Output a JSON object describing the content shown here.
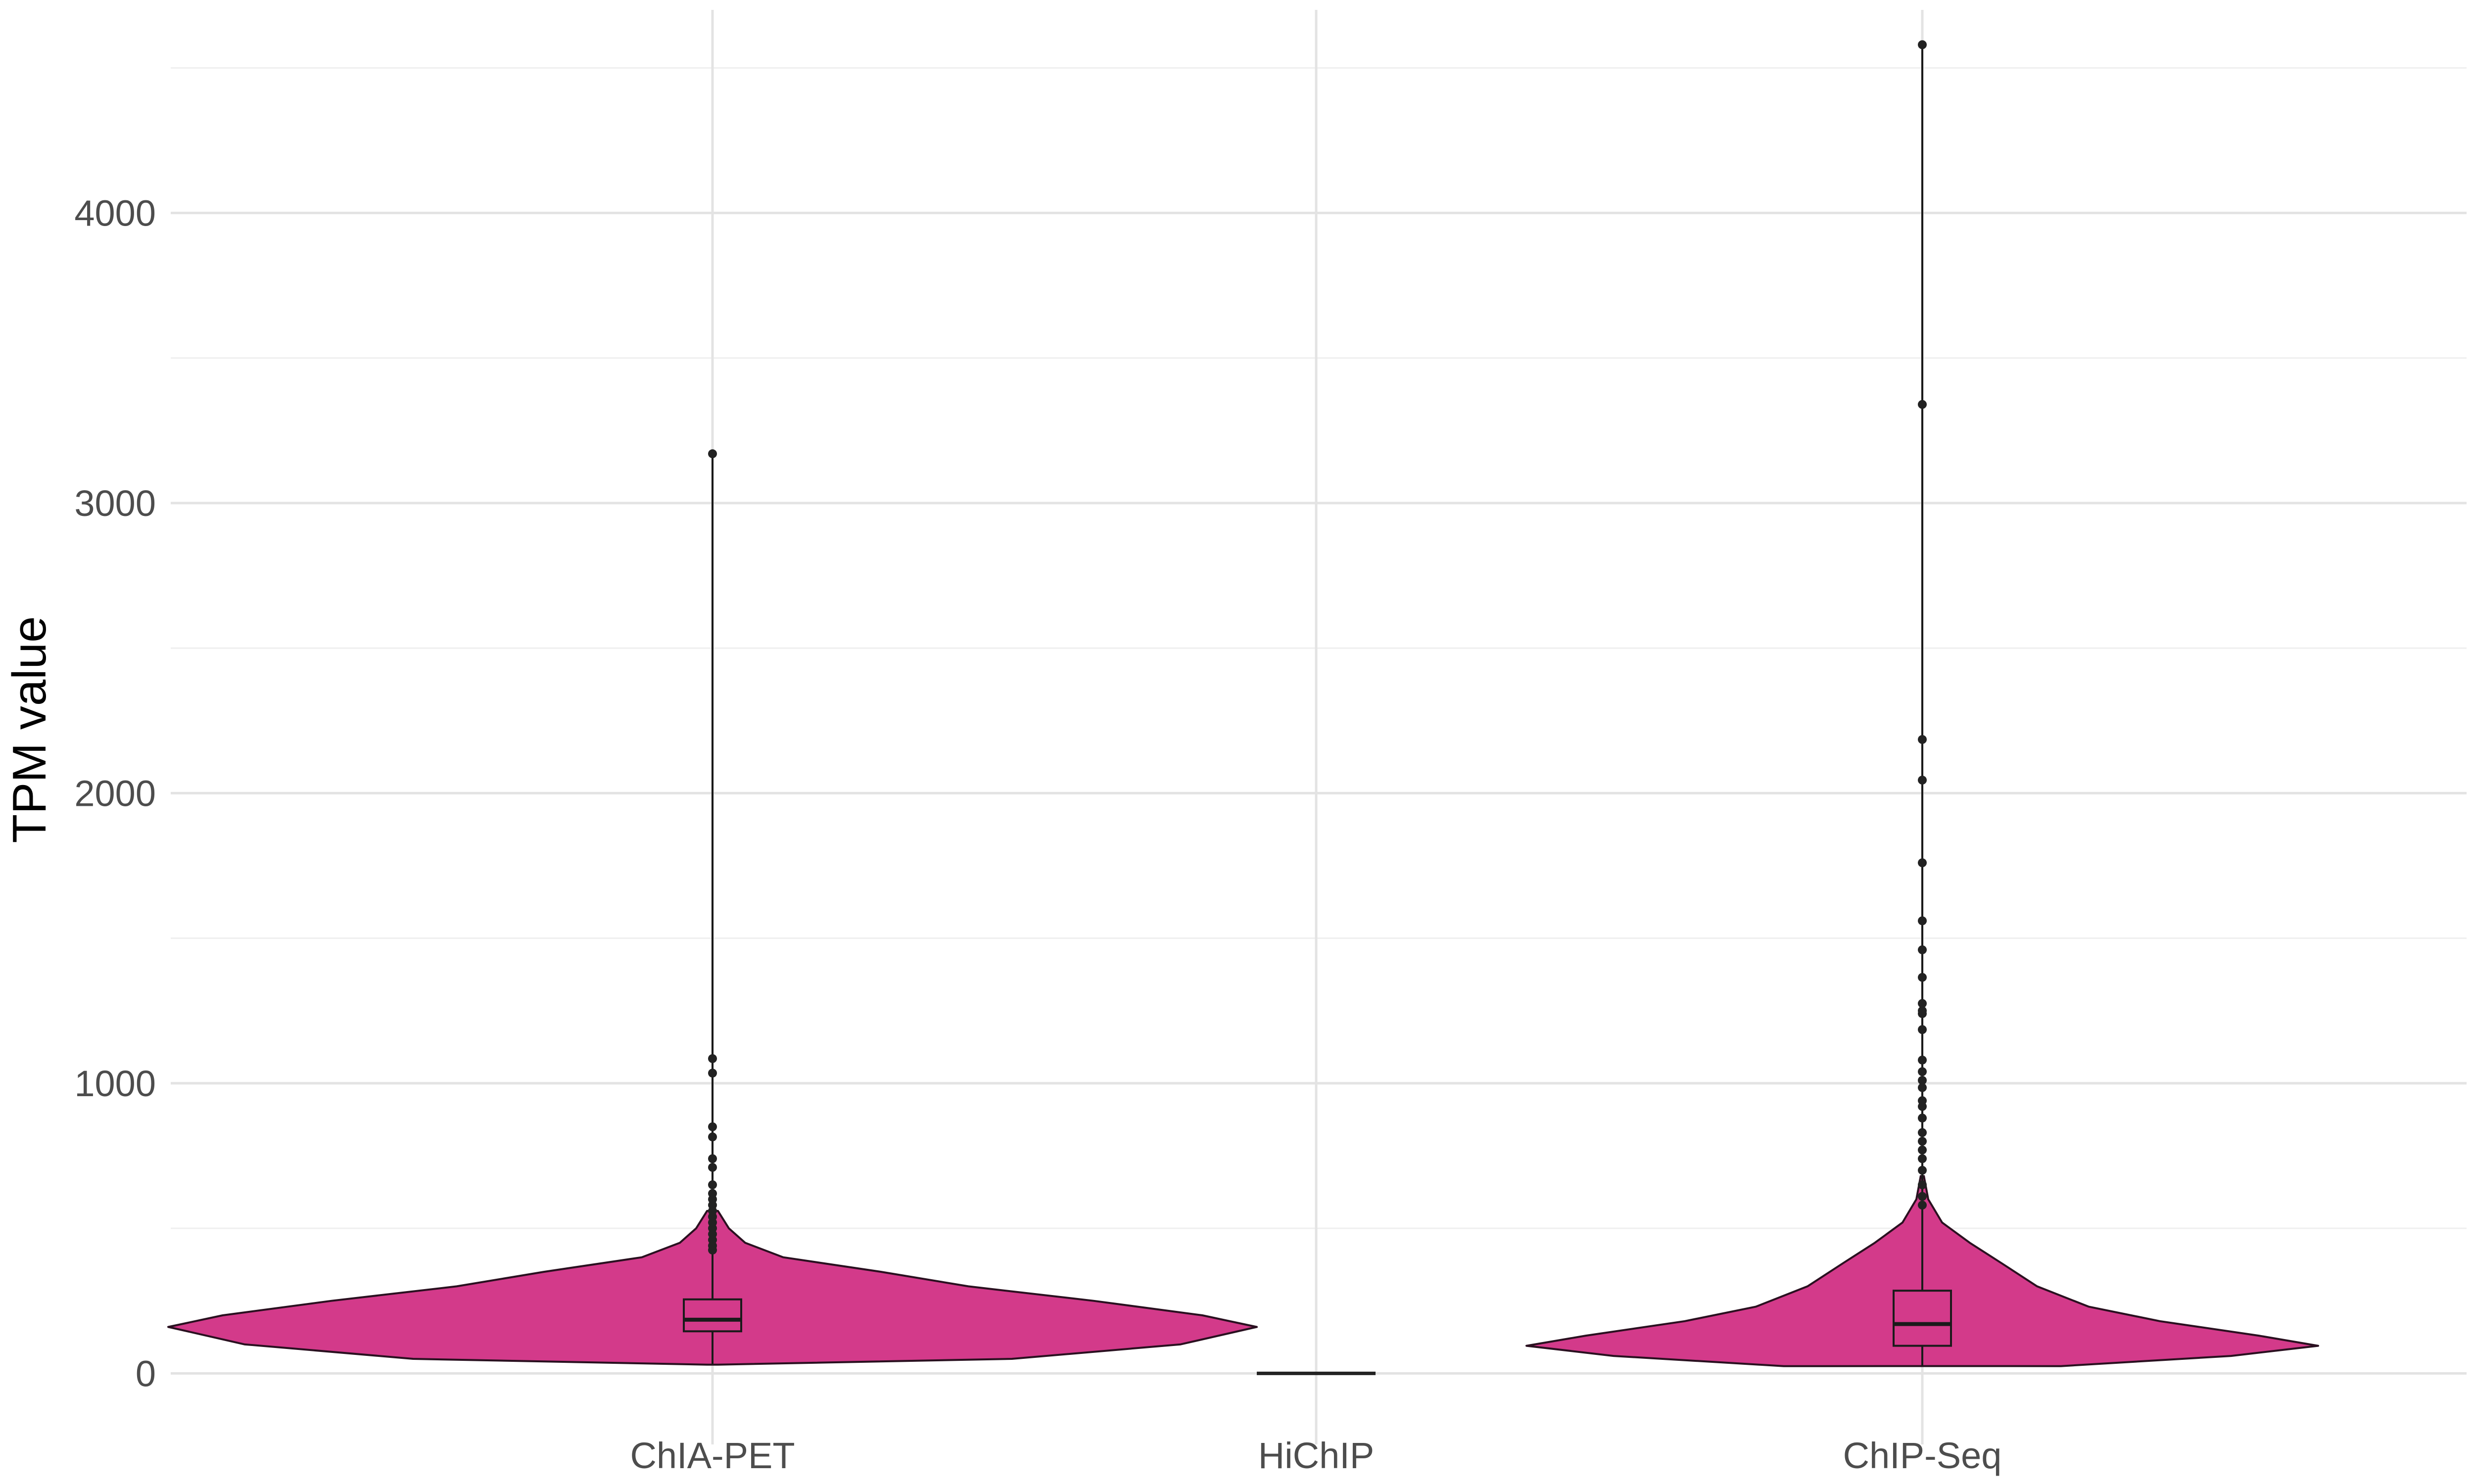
{
  "chart_data": {
    "type": "violin",
    "title": "",
    "xlabel": "",
    "ylabel": "TPM value",
    "ylim": [
      -245,
      4700
    ],
    "yticks": [
      0,
      1000,
      2000,
      3000,
      4000
    ],
    "grid": true,
    "legend": "none",
    "fill_color": "#D33A8A",
    "outline_color": "#2a1020",
    "categories": [
      "ChIA-PET",
      "HiChIP",
      "ChIP-Seq"
    ],
    "series": [
      {
        "category": "ChIA-PET",
        "min": 30,
        "q1": 145,
        "median": 185,
        "q3": 255,
        "whisker_low": 30,
        "whisker_high": 3170,
        "outliers": [
          3170,
          1085,
          1035,
          850,
          815,
          740,
          710,
          650,
          620,
          600,
          580,
          560,
          540,
          520,
          500,
          480,
          460,
          440,
          425
        ],
        "density": [
          [
            30,
            0.01
          ],
          [
            50,
            0.55
          ],
          [
            100,
            0.86
          ],
          [
            160,
            1.0
          ],
          [
            200,
            0.9
          ],
          [
            250,
            0.7
          ],
          [
            300,
            0.47
          ],
          [
            350,
            0.31
          ],
          [
            400,
            0.13
          ],
          [
            450,
            0.06
          ],
          [
            500,
            0.03
          ],
          [
            560,
            0.01
          ]
        ]
      },
      {
        "category": "HiChIP",
        "min": 0,
        "q1": 0,
        "median": 0,
        "q3": 0,
        "whisker_low": 0,
        "whisker_high": 0,
        "outliers": [],
        "density": []
      },
      {
        "category": "ChIP-Seq",
        "min": 25,
        "q1": 95,
        "median": 170,
        "q3": 285,
        "whisker_low": 25,
        "whisker_high": 4580,
        "outliers": [
          4580,
          3340,
          2185,
          2045,
          1760,
          1560,
          1460,
          1365,
          1275,
          1250,
          1240,
          1185,
          1080,
          1040,
          1010,
          985,
          940,
          920,
          880,
          830,
          800,
          770,
          740,
          700,
          650,
          610,
          580
        ],
        "density": [
          [
            25,
            0.35
          ],
          [
            60,
            0.78
          ],
          [
            95,
            1.0
          ],
          [
            130,
            0.85
          ],
          [
            180,
            0.6
          ],
          [
            230,
            0.42
          ],
          [
            300,
            0.29
          ],
          [
            380,
            0.2
          ],
          [
            450,
            0.12
          ],
          [
            520,
            0.05
          ],
          [
            600,
            0.015
          ],
          [
            680,
            0.004
          ]
        ]
      }
    ]
  }
}
